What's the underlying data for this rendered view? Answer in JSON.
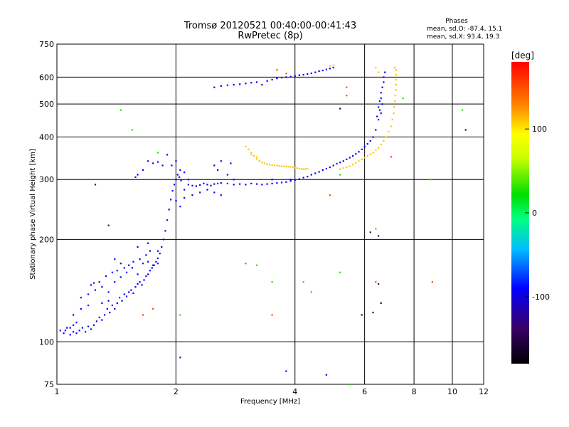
{
  "chart_data": {
    "type": "scatter",
    "title": "Tromsø 20120521 00:40:00-00:41:43",
    "subtitle": "RwPretec (8p)",
    "xlabel": "Frequency [MHz]",
    "ylabel": "Stationary phase Virtual Height [km]",
    "x_scale": "log",
    "y_scale": "log",
    "xlim": [
      1,
      12
    ],
    "ylim": [
      75,
      750
    ],
    "x_ticks": [
      1,
      2,
      4,
      6,
      8,
      10,
      12
    ],
    "y_ticks": [
      75,
      100,
      200,
      300,
      400,
      500,
      600,
      750
    ],
    "grid": true,
    "stats": {
      "heading": "Phases",
      "line1": "mean, sd,O: -87.4, 15.1",
      "line2": "mean, sd,X:  93.4, 19.3"
    },
    "colorbar": {
      "label": "[deg]",
      "range": [
        -180,
        180
      ],
      "ticks": [
        100,
        0,
        -100
      ],
      "ticks_text": [
        "100",
        "0",
        "-100"
      ]
    },
    "series": [
      {
        "color_value": -90,
        "points": [
          [
            1.02,
            108
          ],
          [
            1.04,
            106
          ],
          [
            1.06,
            110
          ],
          [
            1.08,
            105
          ],
          [
            1.1,
            107
          ],
          [
            1.12,
            106
          ],
          [
            1.14,
            108
          ],
          [
            1.16,
            110
          ],
          [
            1.18,
            107
          ],
          [
            1.2,
            111
          ],
          [
            1.22,
            109
          ],
          [
            1.24,
            112
          ],
          [
            1.26,
            115
          ],
          [
            1.28,
            118
          ],
          [
            1.3,
            116
          ],
          [
            1.32,
            120
          ],
          [
            1.34,
            125
          ],
          [
            1.36,
            122
          ],
          [
            1.38,
            128
          ],
          [
            1.4,
            125
          ],
          [
            1.42,
            130
          ],
          [
            1.44,
            135
          ],
          [
            1.46,
            132
          ],
          [
            1.48,
            138
          ],
          [
            1.5,
            136
          ],
          [
            1.52,
            140
          ],
          [
            1.54,
            142
          ],
          [
            1.56,
            139
          ],
          [
            1.58,
            145
          ],
          [
            1.6,
            148
          ],
          [
            1.62,
            150
          ],
          [
            1.64,
            147
          ],
          [
            1.66,
            152
          ],
          [
            1.68,
            156
          ],
          [
            1.7,
            158
          ],
          [
            1.72,
            162
          ],
          [
            1.74,
            165
          ],
          [
            1.76,
            168
          ],
          [
            1.78,
            172
          ],
          [
            1.8,
            176
          ],
          [
            1.82,
            182
          ],
          [
            1.84,
            190
          ],
          [
            1.86,
            200
          ],
          [
            1.88,
            212
          ],
          [
            1.9,
            228
          ],
          [
            1.92,
            245
          ],
          [
            1.94,
            262
          ],
          [
            1.96,
            278
          ],
          [
            1.98,
            290
          ],
          [
            2.0,
            300
          ],
          [
            2.02,
            310
          ],
          [
            2.04,
            305
          ],
          [
            2.06,
            298
          ],
          [
            1.35,
            140
          ],
          [
            1.4,
            150
          ],
          [
            1.45,
            155
          ],
          [
            1.5,
            160
          ],
          [
            1.55,
            165
          ],
          [
            1.6,
            158
          ],
          [
            1.65,
            170
          ],
          [
            1.7,
            172
          ],
          [
            1.75,
            168
          ],
          [
            1.8,
            170
          ],
          [
            1.3,
            145
          ],
          [
            1.25,
            142
          ],
          [
            1.2,
            138
          ],
          [
            1.15,
            135
          ],
          [
            1.1,
            120
          ],
          [
            1.15,
            125
          ],
          [
            1.2,
            128
          ],
          [
            1.3,
            130
          ],
          [
            1.35,
            132
          ],
          [
            1.28,
            150
          ],
          [
            1.33,
            156
          ],
          [
            1.38,
            160
          ],
          [
            1.42,
            162
          ],
          [
            1.48,
            165
          ],
          [
            1.52,
            168
          ],
          [
            1.56,
            172
          ],
          [
            1.62,
            175
          ],
          [
            1.68,
            180
          ],
          [
            1.72,
            185
          ],
          [
            1.22,
            147
          ],
          [
            1.24,
            149
          ],
          [
            1.4,
            175
          ],
          [
            1.45,
            170
          ],
          [
            1.9,
            355
          ],
          [
            1.95,
            330
          ],
          [
            2.0,
            340
          ],
          [
            2.05,
            320
          ],
          [
            2.1,
            315
          ],
          [
            1.7,
            340
          ],
          [
            1.75,
            335
          ],
          [
            1.8,
            338
          ],
          [
            1.85,
            330
          ],
          [
            1.65,
            320
          ],
          [
            1.6,
            310
          ],
          [
            1.58,
            305
          ],
          [
            2.15,
            290
          ],
          [
            2.2,
            288
          ],
          [
            2.25,
            287
          ],
          [
            2.3,
            289
          ],
          [
            2.35,
            292
          ],
          [
            2.4,
            290
          ],
          [
            2.45,
            288
          ],
          [
            2.5,
            291
          ],
          [
            2.55,
            292
          ],
          [
            2.6,
            293
          ],
          [
            2.7,
            292
          ],
          [
            2.8,
            290
          ],
          [
            2.9,
            291
          ],
          [
            3.0,
            290
          ],
          [
            3.1,
            292
          ],
          [
            3.2,
            291
          ],
          [
            3.3,
            290
          ],
          [
            3.4,
            291
          ],
          [
            3.5,
            292
          ],
          [
            3.6,
            293
          ],
          [
            3.7,
            294
          ],
          [
            3.8,
            295
          ],
          [
            3.9,
            297
          ],
          [
            4.0,
            299
          ],
          [
            4.1,
            301
          ],
          [
            4.2,
            304
          ],
          [
            4.3,
            306
          ],
          [
            4.4,
            310
          ],
          [
            4.5,
            313
          ],
          [
            4.6,
            316
          ],
          [
            4.7,
            320
          ],
          [
            4.8,
            323
          ],
          [
            4.9,
            326
          ],
          [
            5.0,
            330
          ],
          [
            5.1,
            334
          ],
          [
            5.2,
            337
          ],
          [
            5.3,
            340
          ],
          [
            5.4,
            344
          ],
          [
            5.5,
            348
          ],
          [
            5.6,
            352
          ],
          [
            5.7,
            357
          ],
          [
            5.8,
            362
          ],
          [
            5.9,
            368
          ],
          [
            6.0,
            375
          ],
          [
            6.1,
            382
          ],
          [
            6.2,
            390
          ],
          [
            6.3,
            400
          ],
          [
            6.4,
            420
          ],
          [
            6.5,
            450
          ],
          [
            6.55,
            480
          ],
          [
            6.6,
            520
          ],
          [
            6.65,
            560
          ],
          [
            6.7,
            600
          ],
          [
            6.75,
            620
          ],
          [
            2.5,
            330
          ],
          [
            2.55,
            320
          ],
          [
            2.6,
            340
          ],
          [
            2.7,
            310
          ],
          [
            2.75,
            335
          ],
          [
            2.8,
            300
          ],
          [
            2.6,
            270
          ],
          [
            2.5,
            275
          ],
          [
            2.4,
            280
          ],
          [
            2.3,
            275
          ],
          [
            2.2,
            270
          ],
          [
            2.1,
            280
          ],
          [
            2.15,
            300
          ],
          [
            2.0,
            260
          ],
          [
            2.05,
            250
          ],
          [
            2.1,
            265
          ],
          [
            3.3,
            570
          ],
          [
            3.4,
            585
          ],
          [
            3.5,
            590
          ],
          [
            3.6,
            595
          ],
          [
            3.7,
            598
          ],
          [
            3.8,
            600
          ],
          [
            3.9,
            602
          ],
          [
            4.0,
            605
          ],
          [
            4.1,
            608
          ],
          [
            4.2,
            610
          ],
          [
            4.3,
            613
          ],
          [
            4.4,
            616
          ],
          [
            4.5,
            620
          ],
          [
            4.6,
            625
          ],
          [
            4.7,
            628
          ],
          [
            4.8,
            632
          ],
          [
            4.9,
            636
          ],
          [
            5.0,
            640
          ],
          [
            3.2,
            580
          ],
          [
            3.1,
            578
          ],
          [
            3.0,
            575
          ],
          [
            2.9,
            572
          ],
          [
            2.8,
            570
          ],
          [
            2.7,
            568
          ],
          [
            2.6,
            565
          ],
          [
            2.5,
            560
          ],
          [
            6.6,
            470
          ],
          [
            6.5,
            490
          ],
          [
            6.55,
            510
          ],
          [
            6.45,
            460
          ],
          [
            6.65,
            500
          ],
          [
            6.6,
            540
          ],
          [
            6.7,
            580
          ],
          [
            1.1,
            112
          ],
          [
            1.12,
            114
          ],
          [
            1.05,
            108
          ],
          [
            1.08,
            110
          ],
          [
            1.6,
            190
          ],
          [
            1.7,
            195
          ],
          [
            1.8,
            185
          ],
          [
            2.05,
            90
          ],
          [
            3.5,
            300
          ],
          [
            3.9,
            300
          ],
          [
            4.8,
            80
          ],
          [
            3.8,
            82
          ]
        ]
      },
      {
        "color_value": 110,
        "points": [
          [
            3.0,
            375
          ],
          [
            3.05,
            368
          ],
          [
            3.1,
            360
          ],
          [
            3.15,
            352
          ],
          [
            3.2,
            345
          ],
          [
            3.25,
            340
          ],
          [
            3.3,
            337
          ],
          [
            3.35,
            335
          ],
          [
            3.4,
            333
          ],
          [
            3.45,
            332
          ],
          [
            3.5,
            331
          ],
          [
            3.55,
            330
          ],
          [
            3.6,
            330
          ],
          [
            3.65,
            329
          ],
          [
            3.7,
            329
          ],
          [
            3.75,
            328
          ],
          [
            3.8,
            328
          ],
          [
            3.85,
            327
          ],
          [
            3.9,
            327
          ],
          [
            3.95,
            326
          ],
          [
            4.0,
            325
          ],
          [
            4.05,
            324
          ],
          [
            4.1,
            323
          ],
          [
            4.15,
            322
          ],
          [
            4.2,
            322
          ],
          [
            4.25,
            322
          ],
          [
            4.3,
            323
          ],
          [
            5.2,
            322
          ],
          [
            5.3,
            324
          ],
          [
            5.4,
            326
          ],
          [
            5.5,
            328
          ],
          [
            5.6,
            332
          ],
          [
            5.7,
            336
          ],
          [
            5.8,
            340
          ],
          [
            5.9,
            344
          ],
          [
            6.0,
            348
          ],
          [
            6.1,
            352
          ],
          [
            6.2,
            356
          ],
          [
            6.3,
            360
          ],
          [
            6.4,
            366
          ],
          [
            6.5,
            372
          ],
          [
            6.6,
            380
          ],
          [
            6.7,
            390
          ],
          [
            6.8,
            400
          ],
          [
            6.9,
            415
          ],
          [
            7.0,
            430
          ],
          [
            7.05,
            450
          ],
          [
            7.1,
            470
          ],
          [
            7.12,
            490
          ],
          [
            7.15,
            510
          ],
          [
            7.17,
            530
          ],
          [
            7.2,
            550
          ],
          [
            7.2,
            570
          ],
          [
            7.2,
            590
          ],
          [
            7.2,
            610
          ],
          [
            7.2,
            630
          ],
          [
            7.15,
            640
          ],
          [
            5.0,
            650
          ],
          [
            4.9,
            648
          ],
          [
            6.4,
            640
          ],
          [
            6.5,
            620
          ],
          [
            3.1,
            355
          ],
          [
            3.2,
            350
          ]
        ]
      },
      {
        "color_value": 30,
        "points": [
          [
            1.45,
            480
          ],
          [
            1.55,
            420
          ],
          [
            1.8,
            360
          ],
          [
            3.2,
            168
          ],
          [
            3.5,
            150
          ],
          [
            4.2,
            150
          ],
          [
            5.2,
            160
          ],
          [
            5.5,
            75
          ],
          [
            2.05,
            120
          ],
          [
            7.5,
            520
          ],
          [
            8.8,
            300
          ],
          [
            10.6,
            480
          ],
          [
            6.4,
            215
          ],
          [
            5.2,
            310
          ],
          [
            4.4,
            140
          ]
        ]
      },
      {
        "color_value": 150,
        "points": [
          [
            3.6,
            630
          ],
          [
            3.8,
            615
          ],
          [
            5.4,
            530
          ],
          [
            6.4,
            150
          ],
          [
            3.5,
            120
          ],
          [
            5.4,
            560
          ],
          [
            7.0,
            350
          ],
          [
            8.9,
            150
          ],
          [
            4.9,
            270
          ],
          [
            3.0,
            170
          ],
          [
            1.65,
            120
          ],
          [
            1.75,
            125
          ]
        ]
      },
      {
        "color_value": -140,
        "points": [
          [
            1.25,
            290
          ],
          [
            1.35,
            220
          ],
          [
            5.9,
            120
          ],
          [
            6.3,
            122
          ],
          [
            6.5,
            148
          ],
          [
            6.6,
            130
          ],
          [
            10.8,
            420
          ],
          [
            6.2,
            210
          ],
          [
            6.5,
            205
          ],
          [
            5.2,
            485
          ]
        ]
      }
    ]
  }
}
